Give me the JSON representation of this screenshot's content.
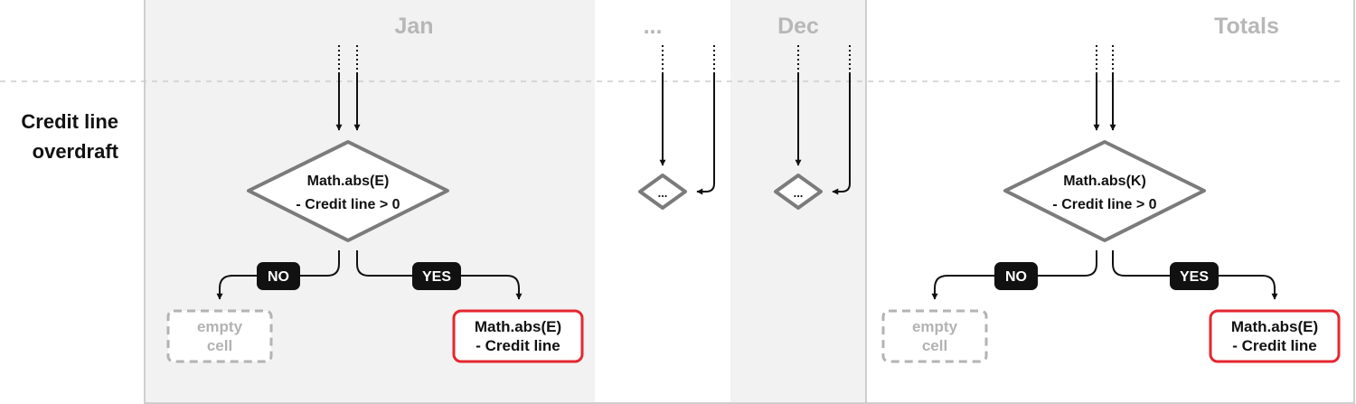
{
  "colors": {
    "shaded": "#f2f2f2",
    "border": "#cfcfcf",
    "heading": "#b7b7b7",
    "diamond": "#7b7b7b",
    "result_border": "#e5262f",
    "pill": "#111111",
    "empty_border": "#b3b3b3"
  },
  "columns": {
    "jan": "Jan",
    "ellipsis": "...",
    "dec": "Dec",
    "totals": "Totals"
  },
  "row": {
    "label_line1": "Credit line",
    "label_line2": "overdraft"
  },
  "jan": {
    "decision_line1": "Math.abs(E)",
    "decision_line2": "- Credit line > 0",
    "no_label": "NO",
    "yes_label": "YES",
    "empty_line1": "empty",
    "empty_line2": "cell",
    "result_line1": "Math.abs(E)",
    "result_line2": "- Credit line"
  },
  "middle": {
    "decision": "..."
  },
  "dec": {
    "decision": "..."
  },
  "totals": {
    "decision_line1": "Math.abs(K)",
    "decision_line2": "- Credit line > 0",
    "no_label": "NO",
    "yes_label": "YES",
    "empty_line1": "empty",
    "empty_line2": "cell",
    "result_line1": "Math.abs(E)",
    "result_line2": "- Credit line"
  }
}
